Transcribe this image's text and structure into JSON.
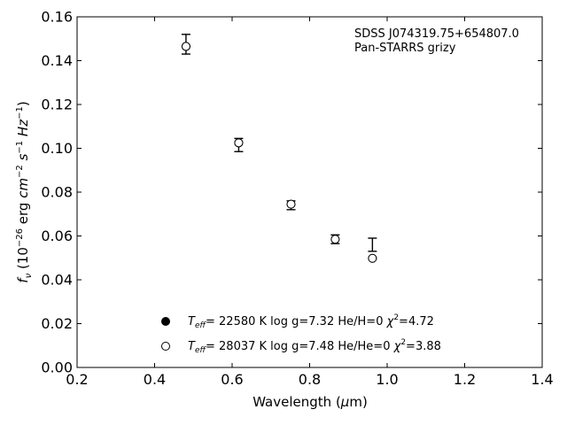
{
  "chart_data": {
    "type": "scatter",
    "title": "",
    "annotations": [
      "SDSS J074319.75+654807.0",
      "Pan-STARRS grizy"
    ],
    "xlabel": "Wavelength (μm)",
    "ylabel": "fν (10⁻²⁶ erg cm⁻² s⁻¹ Hz⁻¹)",
    "xlim": [
      0.2,
      1.4
    ],
    "ylim": [
      0.0,
      0.16
    ],
    "xticks": [
      "0.2",
      "0.4",
      "0.6",
      "0.8",
      "1.0",
      "1.2",
      "1.4"
    ],
    "yticks": [
      "0.00",
      "0.02",
      "0.04",
      "0.06",
      "0.08",
      "0.10",
      "0.12",
      "0.14",
      "0.16"
    ],
    "grid": false,
    "legend_position": "lower-center",
    "observed": {
      "x": [
        0.481,
        0.617,
        0.752,
        0.866,
        0.962
      ],
      "y": [
        0.1475,
        0.1015,
        0.074,
        0.0585,
        0.056
      ],
      "yerr": [
        0.0045,
        0.003,
        0.002,
        0.002,
        0.003
      ]
    },
    "series": [
      {
        "name": "T_eff= 22580 K  log g=7.32  He/H=0  χ²=4.72",
        "teff": "22580 K",
        "logg": "7.32",
        "comp": "He/H=0",
        "chi2": "4.72",
        "marker": "filled-circle",
        "x": [
          0.481,
          0.617,
          0.752,
          0.866,
          0.962
        ],
        "y": [
          0.1465,
          0.1025,
          0.0745,
          0.0585,
          0.0498
        ]
      },
      {
        "name": "T_eff= 28037 K  log g=7.48  He/He=0  χ²=3.88",
        "teff": "28037 K",
        "logg": "7.48",
        "comp": "He/He=0",
        "chi2": "3.88",
        "marker": "open-circle",
        "x": [
          0.481,
          0.617,
          0.752,
          0.866,
          0.962
        ],
        "y": [
          0.1465,
          0.1025,
          0.0745,
          0.0585,
          0.0498
        ]
      }
    ]
  }
}
